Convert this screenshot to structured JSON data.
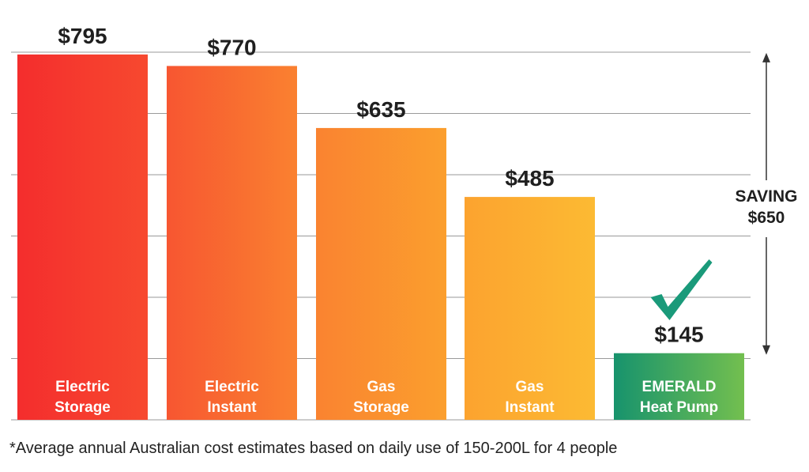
{
  "chart_data": {
    "type": "bar",
    "categories": [
      [
        "Electric",
        "Storage"
      ],
      [
        "Electric",
        "Instant"
      ],
      [
        "Gas",
        "Storage"
      ],
      [
        "Gas",
        "Instant"
      ],
      [
        "EMERALD",
        "Heat Pump"
      ]
    ],
    "values": [
      795,
      770,
      635,
      485,
      145
    ],
    "value_labels": [
      "$795",
      "$770",
      "$635",
      "$485",
      "$145"
    ],
    "ylim": [
      0,
      800
    ],
    "grid": true,
    "title": "",
    "xlabel": "",
    "ylabel": "",
    "annotation": {
      "lines": [
        "SAVING",
        "$650"
      ],
      "from_value": 795,
      "to_value": 145
    },
    "highlight_icon": "checkmark-icon"
  },
  "colors": {
    "bar_gradients": [
      [
        "#f42d2d",
        "#f7492f"
      ],
      [
        "#f75631",
        "#fa8130"
      ],
      [
        "#fa8330",
        "#fb9f2e"
      ],
      [
        "#fca32f",
        "#fcba33"
      ],
      [
        "#17936d",
        "#73bf4f"
      ]
    ],
    "grid": "#9a9a9a",
    "check": "#1a9a7a",
    "arrow": "#333333"
  },
  "footnote": "*Average annual Australian cost estimates based on daily use of 150-200L for 4 people"
}
